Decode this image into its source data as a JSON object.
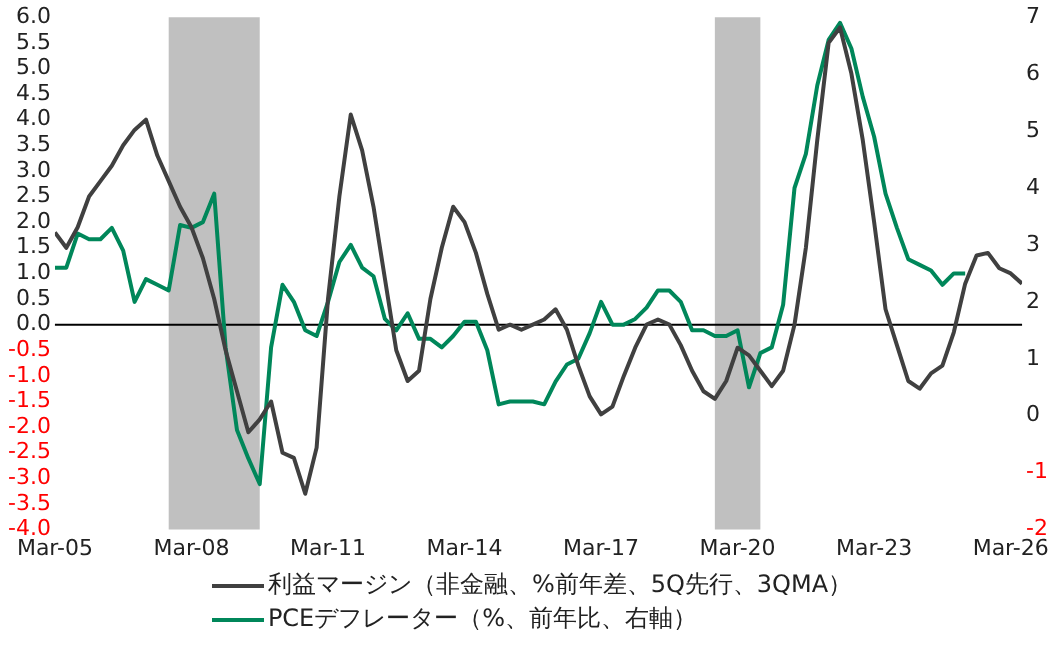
{
  "chart_data": {
    "type": "line",
    "x": [
      "2005-03",
      "2005-06",
      "2005-09",
      "2005-12",
      "2006-03",
      "2006-06",
      "2006-09",
      "2006-12",
      "2007-03",
      "2007-06",
      "2007-09",
      "2007-12",
      "2008-03",
      "2008-06",
      "2008-09",
      "2008-12",
      "2009-03",
      "2009-06",
      "2009-09",
      "2009-12",
      "2010-03",
      "2010-06",
      "2010-09",
      "2010-12",
      "2011-03",
      "2011-06",
      "2011-09",
      "2011-12",
      "2012-03",
      "2012-06",
      "2012-09",
      "2012-12",
      "2013-03",
      "2013-06",
      "2013-09",
      "2013-12",
      "2014-03",
      "2014-06",
      "2014-09",
      "2014-12",
      "2015-03",
      "2015-06",
      "2015-09",
      "2015-12",
      "2016-03",
      "2016-06",
      "2016-09",
      "2016-12",
      "2017-03",
      "2017-06",
      "2017-09",
      "2017-12",
      "2018-03",
      "2018-06",
      "2018-09",
      "2018-12",
      "2019-03",
      "2019-06",
      "2019-09",
      "2019-12",
      "2020-03",
      "2020-06",
      "2020-09",
      "2020-12",
      "2021-03",
      "2021-06",
      "2021-09",
      "2021-12",
      "2022-03",
      "2022-06",
      "2022-09",
      "2022-12",
      "2023-03",
      "2023-06",
      "2023-09",
      "2023-12",
      "2024-03",
      "2024-06",
      "2024-09",
      "2024-12",
      "2025-03",
      "2025-06",
      "2025-09",
      "2025-12",
      "2026-03",
      "2026-06"
    ],
    "series": [
      {
        "name": "利益マージン（非金融、%前年差、5Q先行、3QMA）",
        "color": "#404040",
        "values": [
          1.8,
          1.5,
          1.9,
          2.5,
          2.8,
          3.1,
          3.5,
          3.8,
          4.0,
          3.3,
          2.8,
          2.3,
          1.9,
          1.3,
          0.5,
          -0.5,
          -1.3,
          -2.1,
          -1.85,
          -1.5,
          -2.5,
          -2.6,
          -3.3,
          -2.4,
          0.5,
          2.5,
          4.1,
          3.4,
          2.3,
          0.9,
          -0.5,
          -1.1,
          -0.9,
          0.5,
          1.5,
          2.3,
          2.0,
          1.4,
          0.6,
          -0.1,
          0.0,
          -0.1,
          0.0,
          0.1,
          0.3,
          -0.1,
          -0.8,
          -1.4,
          -1.75,
          -1.6,
          -1.0,
          -0.45,
          0.0,
          0.1,
          0.0,
          -0.4,
          -0.9,
          -1.3,
          -1.45,
          -1.1,
          -0.45,
          -0.6,
          -0.9,
          -1.2,
          -0.9,
          0.0,
          1.5,
          3.6,
          5.5,
          5.8,
          4.9,
          3.6,
          2.0,
          0.3,
          -0.4,
          -1.1,
          -1.25,
          -0.95,
          -0.8,
          -0.15,
          0.8,
          1.35,
          1.4,
          1.1,
          1.0,
          0.8
        ]
      },
      {
        "name": "PCEデフレーター（%、前年比、右軸）",
        "color": "#00875a",
        "axis": "y2",
        "values": [
          2.6,
          2.6,
          3.2,
          3.1,
          3.1,
          3.3,
          2.9,
          2.0,
          2.4,
          2.3,
          2.2,
          3.35,
          3.3,
          3.4,
          3.9,
          1.2,
          -0.25,
          -0.75,
          -1.2,
          1.2,
          2.3,
          2.0,
          1.5,
          1.4,
          2.0,
          2.7,
          3.0,
          2.6,
          2.45,
          1.7,
          1.5,
          1.8,
          1.35,
          1.35,
          1.2,
          1.4,
          1.65,
          1.65,
          1.15,
          0.2,
          0.25,
          0.25,
          0.25,
          0.2,
          0.6,
          0.9,
          1.0,
          1.45,
          2.0,
          1.6,
          1.6,
          1.7,
          1.9,
          2.2,
          2.2,
          2.0,
          1.5,
          1.5,
          1.4,
          1.4,
          1.5,
          0.5,
          1.1,
          1.2,
          1.95,
          4.0,
          4.6,
          5.8,
          6.6,
          6.9,
          6.45,
          5.6,
          4.9,
          3.9,
          3.3,
          2.75,
          2.65,
          2.55,
          2.3,
          2.5,
          2.5,
          null,
          null,
          null,
          null,
          null
        ]
      }
    ],
    "xlim": [
      "2005-03",
      "2026-06"
    ],
    "xticks": [
      {
        "value": "2005-03",
        "label": "Mar-05"
      },
      {
        "value": "2008-03",
        "label": "Mar-08"
      },
      {
        "value": "2011-03",
        "label": "Mar-11"
      },
      {
        "value": "2014-03",
        "label": "Mar-14"
      },
      {
        "value": "2017-03",
        "label": "Mar-17"
      },
      {
        "value": "2020-03",
        "label": "Mar-20"
      },
      {
        "value": "2023-03",
        "label": "Mar-23"
      },
      {
        "value": "2026-03",
        "label": "Mar-26"
      }
    ],
    "ylim": [
      -4,
      6
    ],
    "yticks": [
      {
        "value": -4,
        "label": "-4.0"
      },
      -3.5,
      {
        "value": -3,
        "label": "-3.0"
      },
      -2.5,
      {
        "value": -2,
        "label": "-2.0"
      },
      -1.5,
      {
        "value": -1,
        "label": "-1.0"
      },
      -0.5,
      {
        "value": 0,
        "label": "0.0"
      },
      0.5,
      {
        "value": 1,
        "label": "1.0"
      },
      1.5,
      {
        "value": 2,
        "label": "2.0"
      },
      2.5,
      {
        "value": 3,
        "label": "3.0"
      },
      3.5,
      {
        "value": 4,
        "label": "4.0"
      },
      4.5,
      {
        "value": 5,
        "label": "5.0"
      },
      5.5,
      {
        "value": 6,
        "label": "6.0"
      }
    ],
    "y2lim": [
      -2,
      7
    ],
    "y2ticks": [
      -2,
      -1,
      0,
      1,
      2,
      3,
      4,
      5,
      6,
      7
    ],
    "bands": [
      {
        "axis": "x",
        "from": "2007-09",
        "to": "2009-09",
        "color": "#c0c0c0"
      },
      {
        "axis": "x",
        "from": "2019-09",
        "to": "2020-09",
        "color": "#c0c0c0"
      }
    ],
    "ref_lines": [
      {
        "axis": "y",
        "value": 0,
        "color": "#000000"
      }
    ],
    "legend": "bottom",
    "grid": false,
    "marker": "none",
    "line_style": "solid"
  }
}
